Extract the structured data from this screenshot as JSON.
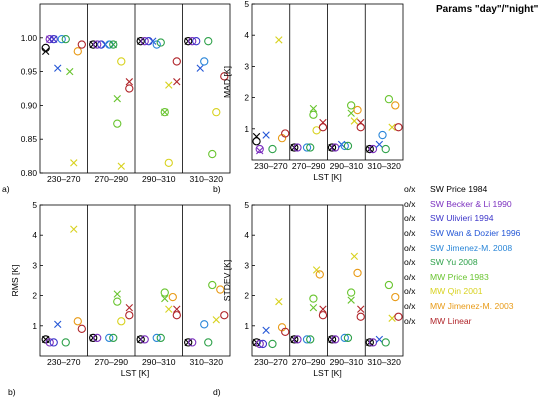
{
  "legend_title": "Params \"day\"/\"night\"",
  "marker_pair": [
    "o",
    "/",
    "x"
  ],
  "chart_data": [
    {
      "type": "scatter",
      "panel_label": "a)",
      "ylabel": "",
      "xlabel": "",
      "categories": [
        "230–270",
        "270–290",
        "290–310",
        "310–320"
      ],
      "ylim": [
        0.8,
        1.05
      ],
      "yticks": [
        0.8,
        0.85,
        0.9,
        0.95,
        1.0
      ],
      "points": [
        {
          "s": 0,
          "c": 0,
          "m": "o",
          "v": 0.985
        },
        {
          "s": 0,
          "c": 0,
          "m": "x",
          "v": 0.98
        },
        {
          "s": 1,
          "c": 0,
          "m": "o",
          "v": 0.998
        },
        {
          "s": 1,
          "c": 0,
          "m": "x",
          "v": 0.998
        },
        {
          "s": 2,
          "c": 0,
          "m": "o",
          "v": 0.998
        },
        {
          "s": 2,
          "c": 0,
          "m": "x",
          "v": 0.998
        },
        {
          "s": 3,
          "c": 0,
          "m": "x",
          "v": 0.955
        },
        {
          "s": 4,
          "c": 0,
          "m": "o",
          "v": 0.998
        },
        {
          "s": 5,
          "c": 0,
          "m": "o",
          "v": 0.998
        },
        {
          "s": 6,
          "c": 0,
          "m": "x",
          "v": 0.95
        },
        {
          "s": 7,
          "c": 0,
          "m": "x",
          "v": 0.815
        },
        {
          "s": 8,
          "c": 0,
          "m": "o",
          "v": 0.98
        },
        {
          "s": 9,
          "c": 0,
          "m": "o",
          "v": 0.99
        },
        {
          "s": 0,
          "c": 1,
          "m": "o",
          "v": 0.99
        },
        {
          "s": 0,
          "c": 1,
          "m": "x",
          "v": 0.99
        },
        {
          "s": 1,
          "c": 1,
          "m": "o",
          "v": 0.99
        },
        {
          "s": 2,
          "c": 1,
          "m": "o",
          "v": 0.99
        },
        {
          "s": 3,
          "c": 1,
          "m": "x",
          "v": 0.99
        },
        {
          "s": 4,
          "c": 1,
          "m": "o",
          "v": 0.99
        },
        {
          "s": 5,
          "c": 1,
          "m": "o",
          "v": 0.99
        },
        {
          "s": 5,
          "c": 1,
          "m": "x",
          "v": 0.99
        },
        {
          "s": 6,
          "c": 1,
          "m": "o",
          "v": 0.873
        },
        {
          "s": 6,
          "c": 1,
          "m": "x",
          "v": 0.91
        },
        {
          "s": 7,
          "c": 1,
          "m": "o",
          "v": 0.965
        },
        {
          "s": 7,
          "c": 1,
          "m": "x",
          "v": 0.81
        },
        {
          "s": 9,
          "c": 1,
          "m": "o",
          "v": 0.925
        },
        {
          "s": 9,
          "c": 1,
          "m": "x",
          "v": 0.935
        },
        {
          "s": 0,
          "c": 2,
          "m": "o",
          "v": 0.995
        },
        {
          "s": 0,
          "c": 2,
          "m": "x",
          "v": 0.995
        },
        {
          "s": 1,
          "c": 2,
          "m": "o",
          "v": 0.995
        },
        {
          "s": 2,
          "c": 2,
          "m": "o",
          "v": 0.995
        },
        {
          "s": 3,
          "c": 2,
          "m": "x",
          "v": 0.995
        },
        {
          "s": 4,
          "c": 2,
          "m": "o",
          "v": 0.99
        },
        {
          "s": 5,
          "c": 2,
          "m": "o",
          "v": 0.993
        },
        {
          "s": 6,
          "c": 2,
          "m": "o",
          "v": 0.89
        },
        {
          "s": 6,
          "c": 2,
          "m": "x",
          "v": 0.89
        },
        {
          "s": 7,
          "c": 2,
          "m": "x",
          "v": 0.93
        },
        {
          "s": 7,
          "c": 2,
          "m": "o",
          "v": 0.815
        },
        {
          "s": 9,
          "c": 2,
          "m": "o",
          "v": 0.965
        },
        {
          "s": 9,
          "c": 2,
          "m": "x",
          "v": 0.935
        },
        {
          "s": 0,
          "c": 3,
          "m": "o",
          "v": 0.995
        },
        {
          "s": 0,
          "c": 3,
          "m": "x",
          "v": 0.995
        },
        {
          "s": 1,
          "c": 3,
          "m": "o",
          "v": 0.995
        },
        {
          "s": 2,
          "c": 3,
          "m": "o",
          "v": 0.995
        },
        {
          "s": 3,
          "c": 3,
          "m": "x",
          "v": 0.955
        },
        {
          "s": 4,
          "c": 3,
          "m": "o",
          "v": 0.965
        },
        {
          "s": 5,
          "c": 3,
          "m": "o",
          "v": 0.995
        },
        {
          "s": 6,
          "c": 3,
          "m": "o",
          "v": 0.828
        },
        {
          "s": 7,
          "c": 3,
          "m": "o",
          "v": 0.89
        },
        {
          "s": 9,
          "c": 3,
          "m": "o",
          "v": 0.943
        }
      ]
    },
    {
      "type": "scatter",
      "panel_label": "b)",
      "ylabel": "MAD [K]",
      "xlabel": "LST [K]",
      "categories": [
        "230–270",
        "270–290",
        "290–310",
        "310–320"
      ],
      "ylim": [
        0,
        5
      ],
      "yticks": [
        1,
        2,
        3,
        4,
        5
      ],
      "points": [
        {
          "s": 0,
          "c": 0,
          "m": "o",
          "v": 0.6
        },
        {
          "s": 0,
          "c": 0,
          "m": "x",
          "v": 0.75
        },
        {
          "s": 1,
          "c": 0,
          "m": "o",
          "v": 0.35
        },
        {
          "s": 1,
          "c": 0,
          "m": "x",
          "v": 0.3
        },
        {
          "s": 3,
          "c": 0,
          "m": "x",
          "v": 0.8
        },
        {
          "s": 5,
          "c": 0,
          "m": "o",
          "v": 0.35
        },
        {
          "s": 7,
          "c": 0,
          "m": "x",
          "v": 3.85
        },
        {
          "s": 8,
          "c": 0,
          "m": "o",
          "v": 0.7
        },
        {
          "s": 9,
          "c": 0,
          "m": "o",
          "v": 0.85
        },
        {
          "s": 0,
          "c": 1,
          "m": "o",
          "v": 0.4
        },
        {
          "s": 0,
          "c": 1,
          "m": "x",
          "v": 0.4
        },
        {
          "s": 1,
          "c": 1,
          "m": "o",
          "v": 0.4
        },
        {
          "s": 4,
          "c": 1,
          "m": "o",
          "v": 0.4
        },
        {
          "s": 5,
          "c": 1,
          "m": "o",
          "v": 0.4
        },
        {
          "s": 6,
          "c": 1,
          "m": "o",
          "v": 1.45
        },
        {
          "s": 6,
          "c": 1,
          "m": "x",
          "v": 1.65
        },
        {
          "s": 7,
          "c": 1,
          "m": "o",
          "v": 0.95
        },
        {
          "s": 9,
          "c": 1,
          "m": "o",
          "v": 1.05
        },
        {
          "s": 9,
          "c": 1,
          "m": "x",
          "v": 1.2
        },
        {
          "s": 0,
          "c": 2,
          "m": "o",
          "v": 0.4
        },
        {
          "s": 0,
          "c": 2,
          "m": "x",
          "v": 0.4
        },
        {
          "s": 1,
          "c": 2,
          "m": "o",
          "v": 0.4
        },
        {
          "s": 3,
          "c": 2,
          "m": "x",
          "v": 0.5
        },
        {
          "s": 4,
          "c": 2,
          "m": "o",
          "v": 0.45
        },
        {
          "s": 5,
          "c": 2,
          "m": "o",
          "v": 0.45
        },
        {
          "s": 6,
          "c": 2,
          "m": "o",
          "v": 1.75
        },
        {
          "s": 6,
          "c": 2,
          "m": "x",
          "v": 1.5
        },
        {
          "s": 7,
          "c": 2,
          "m": "x",
          "v": 1.25
        },
        {
          "s": 8,
          "c": 2,
          "m": "o",
          "v": 1.6
        },
        {
          "s": 9,
          "c": 2,
          "m": "o",
          "v": 1.05
        },
        {
          "s": 9,
          "c": 2,
          "m": "x",
          "v": 1.2
        },
        {
          "s": 0,
          "c": 3,
          "m": "o",
          "v": 0.35
        },
        {
          "s": 0,
          "c": 3,
          "m": "x",
          "v": 0.35
        },
        {
          "s": 1,
          "c": 3,
          "m": "o",
          "v": 0.35
        },
        {
          "s": 3,
          "c": 3,
          "m": "x",
          "v": 0.5
        },
        {
          "s": 4,
          "c": 3,
          "m": "o",
          "v": 0.8
        },
        {
          "s": 5,
          "c": 3,
          "m": "o",
          "v": 0.35
        },
        {
          "s": 6,
          "c": 3,
          "m": "o",
          "v": 1.95
        },
        {
          "s": 7,
          "c": 3,
          "m": "x",
          "v": 1.05
        },
        {
          "s": 8,
          "c": 3,
          "m": "o",
          "v": 1.75
        },
        {
          "s": 9,
          "c": 3,
          "m": "o",
          "v": 1.05
        }
      ]
    },
    {
      "type": "scatter",
      "panel_label": "b)",
      "ylabel": "RMS [K]",
      "xlabel": "LST [K]",
      "categories": [
        "230–270",
        "270–290",
        "290–310",
        "310–320"
      ],
      "ylim": [
        0,
        5
      ],
      "yticks": [
        1,
        2,
        3,
        4,
        5
      ],
      "points": [
        {
          "s": 0,
          "c": 0,
          "m": "o",
          "v": 0.55
        },
        {
          "s": 0,
          "c": 0,
          "m": "x",
          "v": 0.55
        },
        {
          "s": 1,
          "c": 0,
          "m": "o",
          "v": 0.45
        },
        {
          "s": 2,
          "c": 0,
          "m": "o",
          "v": 0.45
        },
        {
          "s": 3,
          "c": 0,
          "m": "x",
          "v": 1.05
        },
        {
          "s": 5,
          "c": 0,
          "m": "o",
          "v": 0.45
        },
        {
          "s": 7,
          "c": 0,
          "m": "x",
          "v": 4.2
        },
        {
          "s": 8,
          "c": 0,
          "m": "o",
          "v": 1.15
        },
        {
          "s": 9,
          "c": 0,
          "m": "o",
          "v": 0.9
        },
        {
          "s": 0,
          "c": 1,
          "m": "o",
          "v": 0.6
        },
        {
          "s": 0,
          "c": 1,
          "m": "x",
          "v": 0.6
        },
        {
          "s": 1,
          "c": 1,
          "m": "o",
          "v": 0.6
        },
        {
          "s": 4,
          "c": 1,
          "m": "o",
          "v": 0.6
        },
        {
          "s": 5,
          "c": 1,
          "m": "o",
          "v": 0.6
        },
        {
          "s": 6,
          "c": 1,
          "m": "o",
          "v": 1.8
        },
        {
          "s": 6,
          "c": 1,
          "m": "x",
          "v": 2.05
        },
        {
          "s": 7,
          "c": 1,
          "m": "o",
          "v": 1.15
        },
        {
          "s": 9,
          "c": 1,
          "m": "o",
          "v": 1.35
        },
        {
          "s": 9,
          "c": 1,
          "m": "x",
          "v": 1.6
        },
        {
          "s": 0,
          "c": 2,
          "m": "o",
          "v": 0.55
        },
        {
          "s": 0,
          "c": 2,
          "m": "x",
          "v": 0.55
        },
        {
          "s": 1,
          "c": 2,
          "m": "o",
          "v": 0.55
        },
        {
          "s": 4,
          "c": 2,
          "m": "o",
          "v": 0.6
        },
        {
          "s": 5,
          "c": 2,
          "m": "o",
          "v": 0.6
        },
        {
          "s": 6,
          "c": 2,
          "m": "o",
          "v": 2.1
        },
        {
          "s": 6,
          "c": 2,
          "m": "x",
          "v": 1.9
        },
        {
          "s": 7,
          "c": 2,
          "m": "x",
          "v": 1.55
        },
        {
          "s": 8,
          "c": 2,
          "m": "o",
          "v": 1.95
        },
        {
          "s": 9,
          "c": 2,
          "m": "o",
          "v": 1.35
        },
        {
          "s": 9,
          "c": 2,
          "m": "x",
          "v": 1.55
        },
        {
          "s": 0,
          "c": 3,
          "m": "o",
          "v": 0.45
        },
        {
          "s": 0,
          "c": 3,
          "m": "x",
          "v": 0.45
        },
        {
          "s": 1,
          "c": 3,
          "m": "o",
          "v": 0.45
        },
        {
          "s": 4,
          "c": 3,
          "m": "o",
          "v": 1.05
        },
        {
          "s": 5,
          "c": 3,
          "m": "o",
          "v": 0.45
        },
        {
          "s": 6,
          "c": 3,
          "m": "o",
          "v": 2.35
        },
        {
          "s": 8,
          "c": 3,
          "m": "o",
          "v": 2.2
        },
        {
          "s": 7,
          "c": 3,
          "m": "x",
          "v": 1.2
        },
        {
          "s": 9,
          "c": 3,
          "m": "o",
          "v": 1.35
        }
      ]
    },
    {
      "type": "scatter",
      "panel_label": "d)",
      "ylabel": "STDEV [K]",
      "xlabel": "LST [K]",
      "categories": [
        "230–270",
        "270–290",
        "290–310",
        "310–320"
      ],
      "ylim": [
        0,
        5
      ],
      "yticks": [
        1,
        2,
        3,
        4,
        5
      ],
      "points": [
        {
          "s": 0,
          "c": 0,
          "m": "o",
          "v": 0.45
        },
        {
          "s": 0,
          "c": 0,
          "m": "x",
          "v": 0.45
        },
        {
          "s": 1,
          "c": 0,
          "m": "o",
          "v": 0.4
        },
        {
          "s": 2,
          "c": 0,
          "m": "o",
          "v": 0.4
        },
        {
          "s": 3,
          "c": 0,
          "m": "x",
          "v": 0.85
        },
        {
          "s": 5,
          "c": 0,
          "m": "o",
          "v": 0.4
        },
        {
          "s": 7,
          "c": 0,
          "m": "x",
          "v": 1.8
        },
        {
          "s": 8,
          "c": 0,
          "m": "o",
          "v": 0.95
        },
        {
          "s": 9,
          "c": 0,
          "m": "o",
          "v": 0.8
        },
        {
          "s": 0,
          "c": 1,
          "m": "o",
          "v": 0.55
        },
        {
          "s": 0,
          "c": 1,
          "m": "x",
          "v": 0.55
        },
        {
          "s": 1,
          "c": 1,
          "m": "o",
          "v": 0.55
        },
        {
          "s": 4,
          "c": 1,
          "m": "o",
          "v": 0.55
        },
        {
          "s": 5,
          "c": 1,
          "m": "o",
          "v": 0.55
        },
        {
          "s": 6,
          "c": 1,
          "m": "o",
          "v": 1.9
        },
        {
          "s": 6,
          "c": 1,
          "m": "x",
          "v": 1.6
        },
        {
          "s": 7,
          "c": 1,
          "m": "x",
          "v": 2.85
        },
        {
          "s": 8,
          "c": 1,
          "m": "o",
          "v": 2.7
        },
        {
          "s": 9,
          "c": 1,
          "m": "o",
          "v": 1.35
        },
        {
          "s": 9,
          "c": 1,
          "m": "x",
          "v": 1.55
        },
        {
          "s": 0,
          "c": 2,
          "m": "o",
          "v": 0.55
        },
        {
          "s": 0,
          "c": 2,
          "m": "x",
          "v": 0.55
        },
        {
          "s": 1,
          "c": 2,
          "m": "o",
          "v": 0.55
        },
        {
          "s": 4,
          "c": 2,
          "m": "o",
          "v": 0.6
        },
        {
          "s": 5,
          "c": 2,
          "m": "o",
          "v": 0.6
        },
        {
          "s": 6,
          "c": 2,
          "m": "o",
          "v": 2.1
        },
        {
          "s": 6,
          "c": 2,
          "m": "x",
          "v": 1.85
        },
        {
          "s": 7,
          "c": 2,
          "m": "x",
          "v": 3.3
        },
        {
          "s": 8,
          "c": 2,
          "m": "o",
          "v": 2.75
        },
        {
          "s": 9,
          "c": 2,
          "m": "o",
          "v": 1.3
        },
        {
          "s": 9,
          "c": 2,
          "m": "x",
          "v": 1.55
        },
        {
          "s": 0,
          "c": 3,
          "m": "o",
          "v": 0.45
        },
        {
          "s": 0,
          "c": 3,
          "m": "x",
          "v": 0.45
        },
        {
          "s": 1,
          "c": 3,
          "m": "o",
          "v": 0.45
        },
        {
          "s": 3,
          "c": 3,
          "m": "x",
          "v": 0.55
        },
        {
          "s": 5,
          "c": 3,
          "m": "o",
          "v": 0.45
        },
        {
          "s": 6,
          "c": 3,
          "m": "o",
          "v": 2.35
        },
        {
          "s": 8,
          "c": 3,
          "m": "o",
          "v": 1.95
        },
        {
          "s": 7,
          "c": 3,
          "m": "x",
          "v": 1.25
        },
        {
          "s": 9,
          "c": 3,
          "m": "o",
          "v": 1.3
        }
      ]
    }
  ],
  "legend": [
    {
      "marker": "o/x",
      "label": "SW Price 1984",
      "color": "#000000"
    },
    {
      "marker": "o/x",
      "label": "SW Becker & Li 1990",
      "color": "#7b2fbf"
    },
    {
      "marker": "o/x",
      "label": "SW Ulivieri 1994",
      "color": "#3b34c9"
    },
    {
      "marker": "o/x",
      "label": "SW Wan & Dozier 1996",
      "color": "#2356d6"
    },
    {
      "marker": "o/x",
      "label": "SW Jimenez-M. 2008",
      "color": "#2a86d8"
    },
    {
      "marker": "o/x",
      "label": "SW Yu 2008",
      "color": "#2ea14a"
    },
    {
      "marker": "o/x",
      "label": "MW Price 1983",
      "color": "#68c42e"
    },
    {
      "marker": "o/x",
      "label": "MW Qin 2001",
      "color": "#d8d21f"
    },
    {
      "marker": "o/x",
      "label": "MW Jimenez-M. 2003",
      "color": "#e89a16"
    },
    {
      "marker": "o/x",
      "label": "MW Linear",
      "color": "#b0252a"
    }
  ]
}
